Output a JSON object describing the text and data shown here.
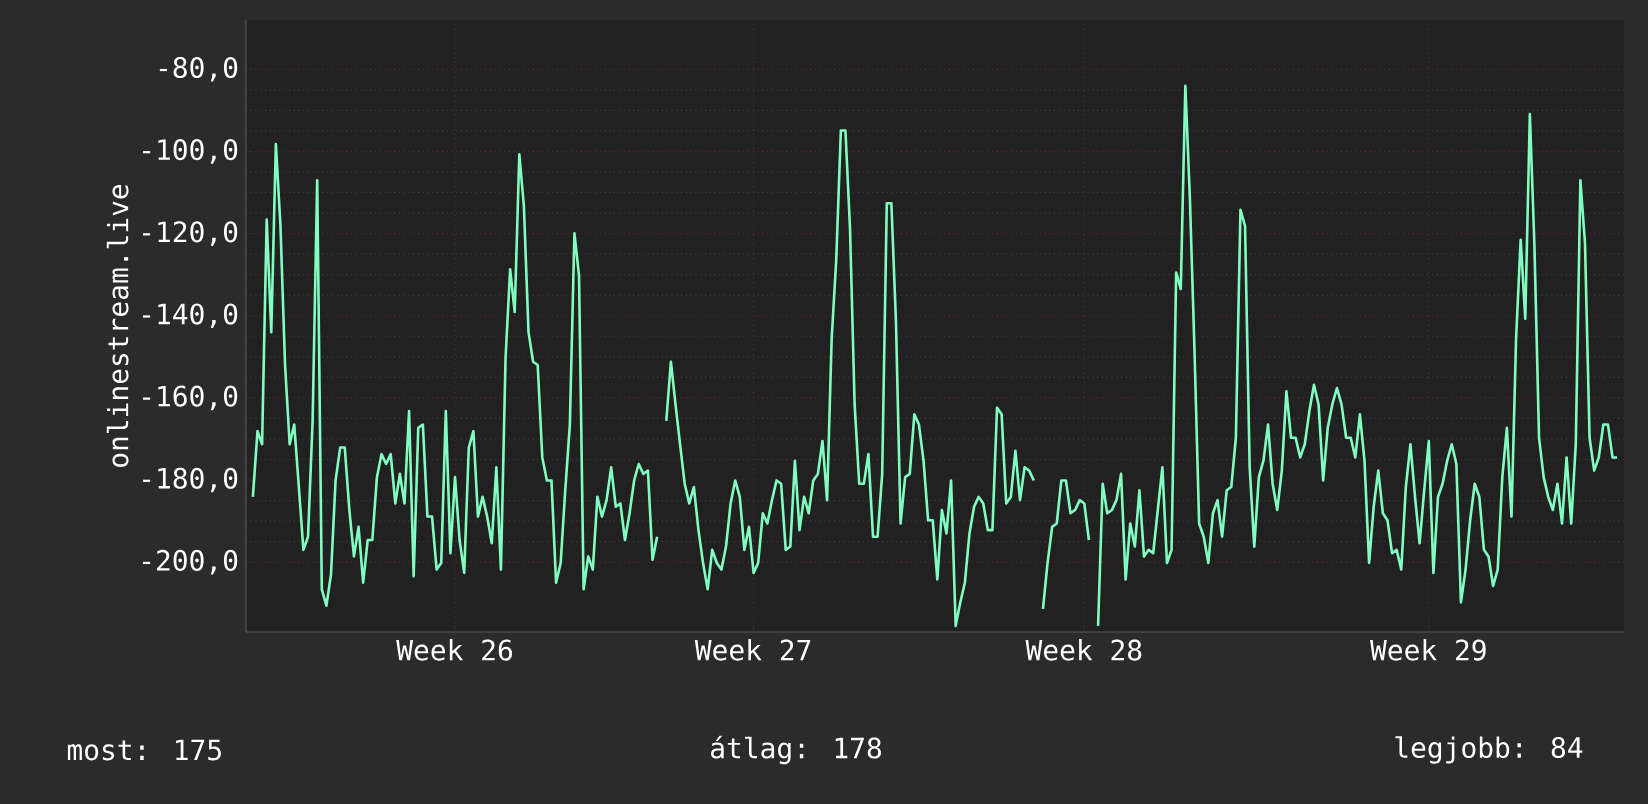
{
  "chart_data": {
    "type": "line",
    "ylabel": "onlinestream.live",
    "ylim": [
      -217,
      -68
    ],
    "categories": [
      null,
      null,
      null,
      null,
      null,
      null,
      null,
      null,
      null,
      null,
      null,
      null,
      null,
      null,
      null,
      null,
      null,
      null,
      null,
      null,
      null,
      null,
      null,
      null,
      null,
      null,
      null,
      null,
      null,
      null,
      null,
      null,
      null,
      null,
      null,
      null,
      null,
      null,
      null,
      null,
      null,
      null,
      null,
      null,
      "Week 26",
      null,
      null,
      null,
      null,
      null,
      null,
      null,
      null,
      null,
      null,
      null,
      null,
      null,
      null,
      null,
      null,
      null,
      null,
      null,
      null,
      null,
      null,
      null,
      null,
      null,
      null,
      null,
      null,
      null,
      null,
      null,
      null,
      null,
      null,
      null,
      null,
      null,
      null,
      null,
      null,
      null,
      null,
      null,
      null,
      null,
      null,
      null,
      null,
      null,
      null,
      null,
      null,
      null,
      null,
      null,
      null,
      null,
      null,
      null,
      null,
      null,
      null,
      null,
      null,
      "Week 27",
      null,
      null,
      null,
      null,
      null,
      null,
      null,
      null,
      null,
      null,
      null,
      null,
      null,
      null,
      null,
      null,
      null,
      null,
      null,
      null,
      null,
      null,
      null,
      null,
      null,
      null,
      null,
      null,
      null,
      null,
      null,
      null,
      null,
      null,
      null,
      null,
      null,
      null,
      null,
      null,
      null,
      null,
      null,
      null,
      null,
      null,
      null,
      null,
      null,
      null,
      null,
      null,
      null,
      null,
      null,
      null,
      null,
      null,
      null,
      null,
      null,
      null,
      null,
      null,
      null,
      null,
      null,
      null,
      null,
      null,
      null,
      "Week 28",
      null,
      null,
      null,
      null,
      null,
      null,
      null,
      null,
      null,
      null,
      null,
      null,
      null,
      null,
      null,
      null,
      null,
      null,
      null,
      null,
      null,
      null,
      null,
      null,
      null,
      null,
      null,
      null,
      null,
      null,
      null,
      null,
      null,
      null,
      null,
      null,
      null,
      null,
      null,
      null,
      null,
      null,
      null,
      null,
      null,
      null,
      null,
      null,
      null,
      null,
      null,
      null,
      null,
      null,
      null,
      null,
      null,
      null,
      null,
      null,
      null,
      null,
      null,
      null,
      null,
      null,
      null,
      null,
      null,
      null,
      null,
      null,
      null,
      null,
      "Week 29",
      null,
      null,
      null,
      null,
      null,
      null,
      null,
      null,
      null,
      null,
      null,
      null,
      null,
      null,
      null,
      null,
      null,
      null,
      null,
      null,
      null,
      null,
      null,
      null,
      null,
      null,
      null,
      null,
      null,
      null,
      null,
      null,
      null,
      null,
      null,
      null,
      null,
      null,
      null,
      null,
      null
    ],
    "yticks": [
      {
        "value": -80,
        "label": "-80,0"
      },
      {
        "value": -100,
        "label": "-100,0"
      },
      {
        "value": -120,
        "label": "-120,0"
      },
      {
        "value": -140,
        "label": "-140,0"
      },
      {
        "value": -160,
        "label": "-160,0"
      },
      {
        "value": -180,
        "label": "-180,0"
      },
      {
        "value": -200,
        "label": "-200,0"
      }
    ],
    "grid": true,
    "annotations": [
      "most: 175",
      "átlag: 178",
      "legjobb: 84"
    ],
    "series": [
      {
        "color": "#80ffc0",
        "values": [
          -184.1,
          -168.1,
          -171.3,
          -116.6,
          -144.0,
          -98.2,
          -118.2,
          -152.0,
          -171.3,
          -166.5,
          -181.7,
          -197.0,
          -193.8,
          -165.6,
          -107.0,
          -206.6,
          -210.6,
          -203.0,
          -180.1,
          -172.1,
          -172.1,
          -187.3,
          -198.6,
          -191.4,
          -205.0,
          -194.6,
          -194.6,
          -179.3,
          -173.7,
          -176.1,
          -173.7,
          -185.7,
          -178.5,
          -185.7,
          -163.2,
          -203.4,
          -167.3,
          -166.5,
          -188.9,
          -188.9,
          -201.8,
          -200.2,
          -163.2,
          -197.8,
          -179.3,
          -194.6,
          -202.6,
          -172.1,
          -168.1,
          -188.9,
          -184.1,
          -188.9,
          -195.4,
          -176.9,
          -201.8,
          -150.4,
          -128.7,
          -139.1,
          -100.7,
          -113.4,
          -144.0,
          -151.2,
          -152.0,
          -174.5,
          -180.1,
          -180.1,
          -205.0,
          -200.2,
          -182.5,
          -166.5,
          -119.9,
          -130.3,
          -206.6,
          -198.6,
          -201.8,
          -184.1,
          -188.9,
          -184.9,
          -176.9,
          -186.5,
          -185.7,
          -194.6,
          -188.1,
          -180.1,
          -176.1,
          -178.5,
          -177.7,
          -199.4,
          -193.8,
          null,
          -165.6,
          -151.2,
          -161.6,
          -171.3,
          -180.9,
          -185.7,
          -181.7,
          -192.2,
          -200.2,
          -206.6,
          -197.0,
          -200.2,
          -201.8,
          -196.2,
          -185.7,
          -180.1,
          -184.1,
          -197.0,
          -191.4,
          -202.6,
          -200.2,
          -188.1,
          -190.6,
          -184.9,
          -180.1,
          -180.9,
          -197.0,
          -196.2,
          -175.3,
          -192.2,
          -184.1,
          -188.1,
          -180.1,
          -178.5,
          -170.5,
          -184.9,
          -145.6,
          -126.3,
          -94.9,
          -94.9,
          -119.0,
          -161.6,
          -180.9,
          -180.9,
          -173.7,
          -193.8,
          -193.8,
          -178.5,
          -112.6,
          -112.6,
          -141.5,
          -190.6,
          -179.3,
          -178.5,
          -164.0,
          -166.5,
          -175.3,
          -189.8,
          -189.8,
          -204.2,
          -187.3,
          -193.0,
          -180.1,
          -215.5,
          -209.8,
          -205.0,
          -193.0,
          -186.5,
          -184.1,
          -185.7,
          -192.2,
          -192.2,
          -162.4,
          -164.0,
          -185.7,
          -184.1,
          -172.9,
          -184.9,
          -176.9,
          -177.7,
          -180.1,
          null,
          -211.4,
          -200.2,
          -191.4,
          -190.6,
          -180.1,
          -180.1,
          -188.1,
          -187.3,
          -184.9,
          -185.7,
          -194.6,
          null,
          -215.5,
          -180.9,
          -188.1,
          -187.3,
          -184.9,
          -178.5,
          -204.2,
          -190.6,
          -196.2,
          -182.5,
          -198.6,
          -197.0,
          -197.8,
          -187.3,
          -176.9,
          -200.2,
          -197.0,
          -129.5,
          -133.5,
          -84.0,
          -111.8,
          -148.8,
          -190.6,
          -193.8,
          -200.2,
          -188.1,
          -184.9,
          -193.8,
          -182.5,
          -181.7,
          -169.7,
          -114.2,
          -118.2,
          -176.9,
          -196.2,
          -179.3,
          -175.3,
          -166.5,
          -180.9,
          -187.3,
          -177.7,
          -158.4,
          -169.7,
          -169.7,
          -174.5,
          -171.3,
          -163.2,
          -156.8,
          -161.6,
          -180.1,
          -167.3,
          -161.6,
          -157.6,
          -161.6,
          -169.7,
          -169.7,
          -174.5,
          -164.0,
          -175.3,
          -200.2,
          -186.5,
          -177.7,
          -188.1,
          -189.8,
          -197.8,
          -197.0,
          -201.8,
          -181.7,
          -171.3,
          -184.1,
          -195.4,
          -182.5,
          -170.5,
          -202.6,
          -184.1,
          -180.9,
          -175.3,
          -171.3,
          -176.1,
          -209.8,
          -201.8,
          -189.8,
          -180.9,
          -184.1,
          -197.0,
          -198.6,
          -205.8,
          -201.8,
          -179.3,
          -167.3,
          -188.9,
          -145.6,
          -121.5,
          -140.7,
          -90.9,
          -123.1,
          -169.7,
          -179.3,
          -184.1,
          -187.3,
          -180.9,
          -190.6,
          -174.5,
          -190.6,
          -171.3,
          -107.0,
          -122.3,
          -169.7,
          -177.7,
          -174.5,
          -166.5,
          -166.5,
          -174.5,
          -174.5
        ]
      }
    ]
  }
}
